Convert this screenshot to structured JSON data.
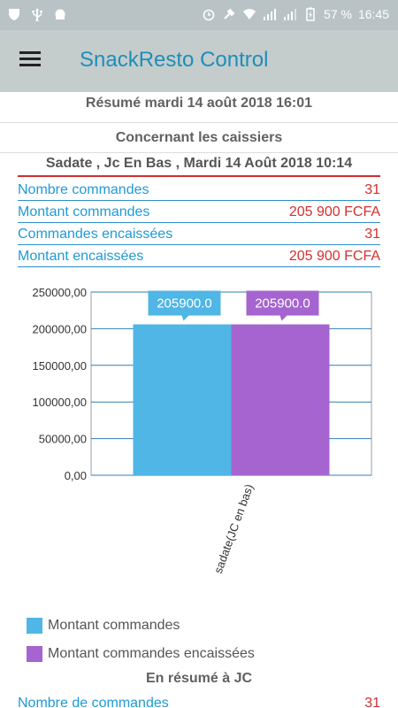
{
  "status_bar": {
    "battery": "57 %",
    "time": "16:45"
  },
  "app_bar": {
    "title": "SnackResto Control"
  },
  "summary_heading": "Résumé mardi 14 août 2018 16:01",
  "cashiers_heading": "Concernant les caissiers",
  "cashier": {
    "title": "Sadate , Jc En Bas , Mardi 14 Août 2018 10:14",
    "stats": [
      {
        "label": "Nombre commandes",
        "value": "31"
      },
      {
        "label": "Montant commandes",
        "value": "205 900 FCFA"
      },
      {
        "label": "Commandes encaissées",
        "value": "31"
      },
      {
        "label": "Montant encaissées",
        "value": "205 900 FCFA"
      }
    ]
  },
  "chart_data": {
    "type": "bar",
    "categories": [
      "sadate(JC en bas)"
    ],
    "series": [
      {
        "name": "Montant commandes",
        "values": [
          205900.0
        ],
        "color": "#4fb6e6",
        "label": "205900.0"
      },
      {
        "name": "Montant commandes encaissées",
        "values": [
          205900.0
        ],
        "color": "#a564cf",
        "label": "205900.0"
      }
    ],
    "y_ticks": [
      "0,00",
      "50000,00",
      "100000,00",
      "150000,00",
      "200000,00",
      "250000,00"
    ],
    "ylim": [
      0,
      250000
    ],
    "grid": true,
    "legend_position": "bottom-left"
  },
  "jc_heading": "En résumé à JC",
  "jc_row": {
    "label": "Nombre de commandes",
    "value": "31"
  }
}
